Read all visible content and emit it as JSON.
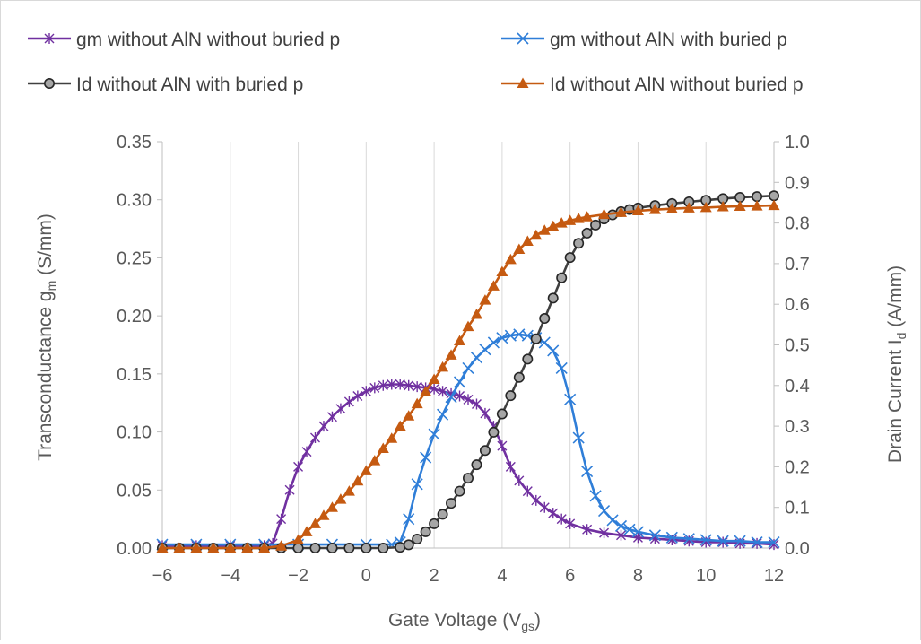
{
  "chart_data": {
    "type": "line",
    "xlabel": {
      "main": "Gate Voltage (V",
      "sub": "gs",
      "tail": ")"
    },
    "ylabel_left": {
      "main": "Transconductance g",
      "sub": "m",
      "tail": "  (S/mm)"
    },
    "ylabel_right": {
      "main": "Drain Current I",
      "sub": "d",
      "tail": " (A/mm)"
    },
    "xlim": [
      -6,
      12
    ],
    "ylim_left": [
      0,
      0.35
    ],
    "ylim_right": [
      0,
      1.0
    ],
    "xticks": [
      "−6",
      "−4",
      "−2",
      "0",
      "2",
      "4",
      "6",
      "8",
      "10",
      "12"
    ],
    "yticks_left": [
      "0.00",
      "0.05",
      "0.10",
      "0.15",
      "0.20",
      "0.25",
      "0.30",
      "0.35"
    ],
    "yticks_right": [
      "0.0",
      "0.1",
      "0.2",
      "0.3",
      "0.4",
      "0.5",
      "0.6",
      "0.7",
      "0.8",
      "0.9",
      "1.0"
    ],
    "grid": "vertical",
    "legend_position": "top",
    "series": [
      {
        "name": "gm without AlN without buried p",
        "axis": "left",
        "color": "#7030a0",
        "marker": "star",
        "points": [
          [
            -6,
            0.002
          ],
          [
            -5,
            0.002
          ],
          [
            -4,
            0.002
          ],
          [
            -3,
            0.002
          ],
          [
            -2.75,
            0.004
          ],
          [
            -2.5,
            0.025
          ],
          [
            -2.25,
            0.05
          ],
          [
            -2,
            0.07
          ],
          [
            -1.75,
            0.083
          ],
          [
            -1.5,
            0.095
          ],
          [
            -1.25,
            0.105
          ],
          [
            -1,
            0.113
          ],
          [
            -0.75,
            0.12
          ],
          [
            -0.5,
            0.126
          ],
          [
            -0.25,
            0.131
          ],
          [
            0,
            0.135
          ],
          [
            0.25,
            0.138
          ],
          [
            0.5,
            0.14
          ],
          [
            0.75,
            0.141
          ],
          [
            1,
            0.141
          ],
          [
            1.25,
            0.14
          ],
          [
            1.5,
            0.139
          ],
          [
            1.75,
            0.138
          ],
          [
            2,
            0.137
          ],
          [
            2.25,
            0.135
          ],
          [
            2.5,
            0.133
          ],
          [
            2.75,
            0.131
          ],
          [
            3,
            0.128
          ],
          [
            3.25,
            0.124
          ],
          [
            3.5,
            0.116
          ],
          [
            3.75,
            0.105
          ],
          [
            4,
            0.088
          ],
          [
            4.25,
            0.07
          ],
          [
            4.5,
            0.058
          ],
          [
            4.75,
            0.049
          ],
          [
            5,
            0.041
          ],
          [
            5.25,
            0.035
          ],
          [
            5.5,
            0.03
          ],
          [
            5.75,
            0.025
          ],
          [
            6,
            0.021
          ],
          [
            6.5,
            0.016
          ],
          [
            7,
            0.013
          ],
          [
            7.5,
            0.011
          ],
          [
            8,
            0.009
          ],
          [
            8.5,
            0.008
          ],
          [
            9,
            0.007
          ],
          [
            9.5,
            0.006
          ],
          [
            10,
            0.005
          ],
          [
            10.5,
            0.005
          ],
          [
            11,
            0.004
          ],
          [
            11.5,
            0.004
          ],
          [
            12,
            0.003
          ]
        ]
      },
      {
        "name": "gm without AlN with buried p",
        "axis": "left",
        "color": "#2f7ed8",
        "marker": "x",
        "points": [
          [
            -6,
            0.003
          ],
          [
            -5,
            0.003
          ],
          [
            -4,
            0.003
          ],
          [
            -3,
            0.003
          ],
          [
            -2,
            0.003
          ],
          [
            -1,
            0.003
          ],
          [
            0,
            0.003
          ],
          [
            0.75,
            0.003
          ],
          [
            1,
            0.005
          ],
          [
            1.25,
            0.025
          ],
          [
            1.5,
            0.055
          ],
          [
            1.75,
            0.078
          ],
          [
            2,
            0.098
          ],
          [
            2.25,
            0.115
          ],
          [
            2.5,
            0.13
          ],
          [
            2.75,
            0.143
          ],
          [
            3,
            0.155
          ],
          [
            3.25,
            0.164
          ],
          [
            3.5,
            0.171
          ],
          [
            3.75,
            0.177
          ],
          [
            4,
            0.181
          ],
          [
            4.25,
            0.183
          ],
          [
            4.5,
            0.184
          ],
          [
            4.75,
            0.183
          ],
          [
            5,
            0.181
          ],
          [
            5.25,
            0.177
          ],
          [
            5.5,
            0.17
          ],
          [
            5.75,
            0.155
          ],
          [
            6,
            0.128
          ],
          [
            6.25,
            0.095
          ],
          [
            6.5,
            0.066
          ],
          [
            6.75,
            0.045
          ],
          [
            7,
            0.032
          ],
          [
            7.25,
            0.024
          ],
          [
            7.5,
            0.019
          ],
          [
            7.75,
            0.016
          ],
          [
            8,
            0.014
          ],
          [
            8.5,
            0.011
          ],
          [
            9,
            0.009
          ],
          [
            9.5,
            0.008
          ],
          [
            10,
            0.007
          ],
          [
            10.5,
            0.006
          ],
          [
            11,
            0.006
          ],
          [
            11.5,
            0.005
          ],
          [
            12,
            0.005
          ]
        ]
      },
      {
        "name": "Id without AlN with buried p",
        "axis": "right",
        "color": "#404040",
        "marker": "circle",
        "points": [
          [
            -6,
            0.0
          ],
          [
            -5.5,
            0.0
          ],
          [
            -5,
            0.0
          ],
          [
            -4.5,
            0.0
          ],
          [
            -4,
            0.0
          ],
          [
            -3.5,
            0.0
          ],
          [
            -3,
            0.0
          ],
          [
            -2.5,
            0.0
          ],
          [
            -2,
            0.0
          ],
          [
            -1.5,
            0.0
          ],
          [
            -1,
            0.0
          ],
          [
            -0.5,
            0.0
          ],
          [
            0,
            0.0
          ],
          [
            0.5,
            0.0
          ],
          [
            1,
            0.002
          ],
          [
            1.25,
            0.008
          ],
          [
            1.5,
            0.022
          ],
          [
            1.75,
            0.04
          ],
          [
            2,
            0.06
          ],
          [
            2.25,
            0.083
          ],
          [
            2.5,
            0.11
          ],
          [
            2.75,
            0.14
          ],
          [
            3,
            0.172
          ],
          [
            3.25,
            0.205
          ],
          [
            3.5,
            0.24
          ],
          [
            3.75,
            0.285
          ],
          [
            4,
            0.33
          ],
          [
            4.25,
            0.375
          ],
          [
            4.5,
            0.42
          ],
          [
            4.75,
            0.465
          ],
          [
            5,
            0.515
          ],
          [
            5.25,
            0.565
          ],
          [
            5.5,
            0.615
          ],
          [
            5.75,
            0.665
          ],
          [
            6,
            0.715
          ],
          [
            6.25,
            0.75
          ],
          [
            6.5,
            0.775
          ],
          [
            6.75,
            0.795
          ],
          [
            7,
            0.81
          ],
          [
            7.25,
            0.82
          ],
          [
            7.5,
            0.828
          ],
          [
            7.75,
            0.833
          ],
          [
            8,
            0.837
          ],
          [
            8.5,
            0.843
          ],
          [
            9,
            0.848
          ],
          [
            9.5,
            0.852
          ],
          [
            10,
            0.856
          ],
          [
            10.5,
            0.86
          ],
          [
            11,
            0.863
          ],
          [
            11.5,
            0.865
          ],
          [
            12,
            0.867
          ]
        ]
      },
      {
        "name": "Id without AlN without buried p",
        "axis": "right",
        "color": "#c55a11",
        "marker": "triangle",
        "points": [
          [
            -6,
            0.0
          ],
          [
            -5.5,
            0.0
          ],
          [
            -5,
            0.0
          ],
          [
            -4.5,
            0.0
          ],
          [
            -4,
            0.0
          ],
          [
            -3.5,
            0.0
          ],
          [
            -3,
            0.0
          ],
          [
            -2.5,
            0.005
          ],
          [
            -2,
            0.02
          ],
          [
            -1.75,
            0.04
          ],
          [
            -1.5,
            0.06
          ],
          [
            -1.25,
            0.08
          ],
          [
            -1,
            0.1
          ],
          [
            -0.75,
            0.12
          ],
          [
            -0.5,
            0.14
          ],
          [
            -0.25,
            0.165
          ],
          [
            0,
            0.19
          ],
          [
            0.25,
            0.215
          ],
          [
            0.5,
            0.245
          ],
          [
            0.75,
            0.27
          ],
          [
            1,
            0.3
          ],
          [
            1.25,
            0.325
          ],
          [
            1.5,
            0.355
          ],
          [
            1.75,
            0.385
          ],
          [
            2,
            0.415
          ],
          [
            2.25,
            0.445
          ],
          [
            2.5,
            0.475
          ],
          [
            2.75,
            0.51
          ],
          [
            3,
            0.545
          ],
          [
            3.25,
            0.575
          ],
          [
            3.5,
            0.61
          ],
          [
            3.75,
            0.645
          ],
          [
            4,
            0.68
          ],
          [
            4.25,
            0.71
          ],
          [
            4.5,
            0.735
          ],
          [
            4.75,
            0.755
          ],
          [
            5,
            0.77
          ],
          [
            5.25,
            0.782
          ],
          [
            5.5,
            0.792
          ],
          [
            5.75,
            0.8
          ],
          [
            6,
            0.806
          ],
          [
            6.25,
            0.811
          ],
          [
            6.5,
            0.815
          ],
          [
            7,
            0.821
          ],
          [
            7.5,
            0.826
          ],
          [
            8,
            0.83
          ],
          [
            8.5,
            0.833
          ],
          [
            9,
            0.835
          ],
          [
            9.5,
            0.837
          ],
          [
            10,
            0.838
          ],
          [
            10.5,
            0.84
          ],
          [
            11,
            0.841
          ],
          [
            11.5,
            0.842
          ],
          [
            12,
            0.843
          ]
        ]
      }
    ]
  }
}
